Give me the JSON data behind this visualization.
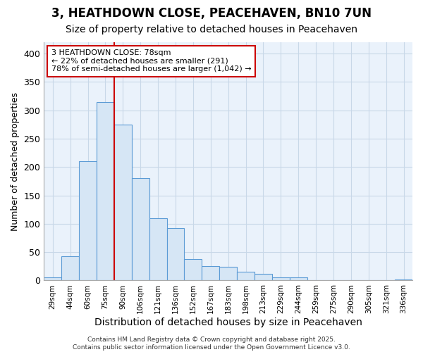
{
  "title": "3, HEATHDOWN CLOSE, PEACEHAVEN, BN10 7UN",
  "subtitle": "Size of property relative to detached houses in Peacehaven",
  "xlabel": "Distribution of detached houses by size in Peacehaven",
  "ylabel": "Number of detached properties",
  "categories": [
    "29sqm",
    "44sqm",
    "60sqm",
    "75sqm",
    "90sqm",
    "106sqm",
    "121sqm",
    "136sqm",
    "152sqm",
    "167sqm",
    "183sqm",
    "198sqm",
    "213sqm",
    "229sqm",
    "244sqm",
    "259sqm",
    "275sqm",
    "290sqm",
    "305sqm",
    "321sqm",
    "336sqm"
  ],
  "values": [
    5,
    43,
    210,
    315,
    275,
    180,
    110,
    93,
    38,
    25,
    24,
    16,
    12,
    5,
    5,
    1,
    1,
    1,
    0,
    0,
    2
  ],
  "bar_color": "#d6e6f5",
  "bar_edgecolor": "#5b9bd5",
  "grid_color": "#c8d8e8",
  "background_color": "#eaf2fb",
  "red_line_x": 3,
  "annotation_line1": "3 HEATHDOWN CLOSE: 78sqm",
  "annotation_line2": "← 22% of detached houses are smaller (291)",
  "annotation_line3": "78% of semi-detached houses are larger (1,042) →",
  "annotation_box_color": "#ffffff",
  "annotation_border_color": "#cc0000",
  "footer_line1": "Contains HM Land Registry data © Crown copyright and database right 2025.",
  "footer_line2": "Contains public sector information licensed under the Open Government Licence v3.0.",
  "ylim": [
    0,
    420
  ],
  "yticks": [
    0,
    50,
    100,
    150,
    200,
    250,
    300,
    350,
    400
  ],
  "title_fontsize": 12,
  "subtitle_fontsize": 10,
  "xlabel_fontsize": 10,
  "ylabel_fontsize": 9
}
